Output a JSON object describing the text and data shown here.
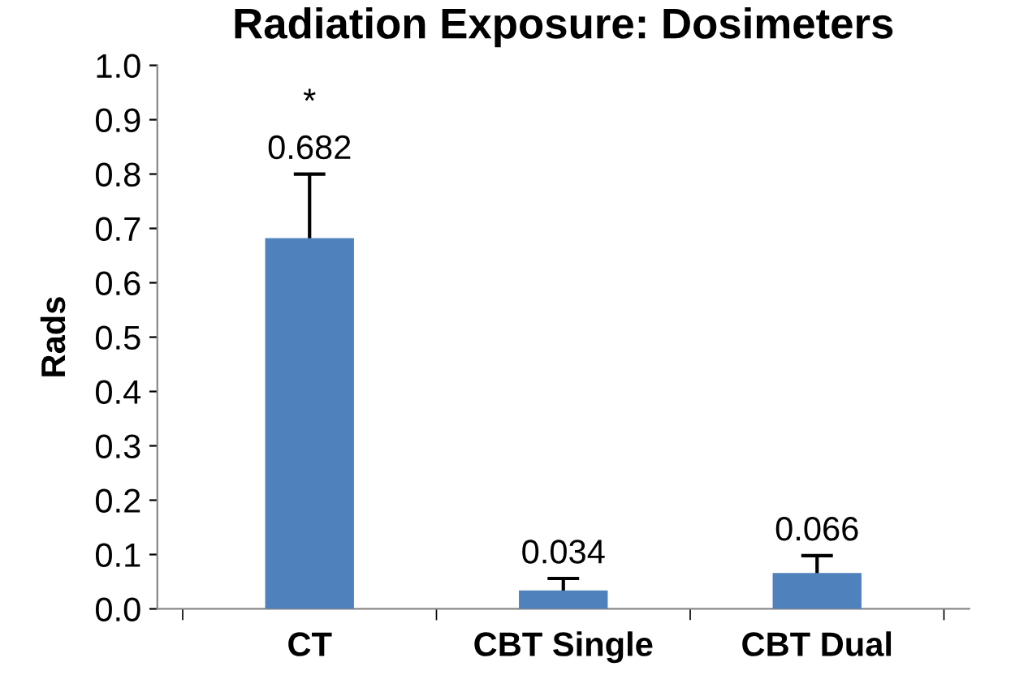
{
  "chart_data": {
    "type": "bar",
    "title": "Radiation Exposure: Dosimeters",
    "ylabel": "Rads",
    "categories": [
      "CT",
      "CBT Single",
      "CBT Dual"
    ],
    "values": [
      0.682,
      0.034,
      0.066
    ],
    "errors": [
      0.118,
      0.022,
      0.032
    ],
    "color": "#4f81bd",
    "data_labels": true,
    "ylim": [
      0,
      1
    ],
    "yticks": [
      {
        "value": 0,
        "label": "0.0"
      },
      {
        "value": 0.1,
        "label": "0.1"
      },
      {
        "value": 0.2,
        "label": "0.2"
      },
      {
        "value": 0.3,
        "label": "0.3"
      },
      {
        "value": 0.4,
        "label": "0.4"
      },
      {
        "value": 0.5,
        "label": "0.5"
      },
      {
        "value": 0.6,
        "label": "0.6"
      },
      {
        "value": 0.7,
        "label": "0.7"
      },
      {
        "value": 0.8,
        "label": "0.8"
      },
      {
        "value": 0.9,
        "label": "0.9"
      },
      {
        "value": 1.0,
        "label": "1.0"
      }
    ],
    "grid": false,
    "annotations": [
      "*"
    ]
  }
}
